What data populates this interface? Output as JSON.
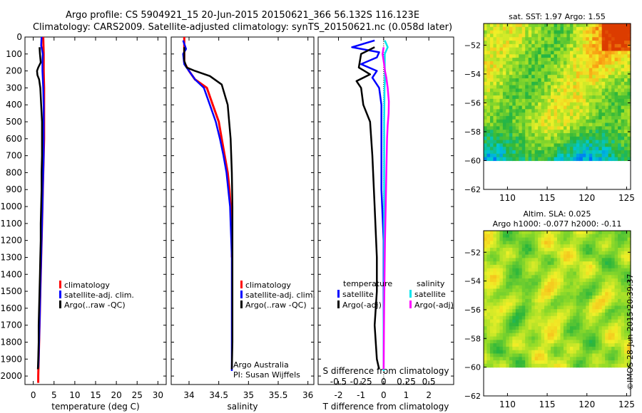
{
  "header": {
    "line1": "Argo profile: CS 5904921_15 20-Jun-2015 20150621_366 56.132S 116.123E",
    "line2": "Climatology: CARS2009. Satellite-adjusted climatology: synTS_20150621.nc (0.058d later)"
  },
  "stamp": "©IMOS 28-Jun-2015 20:39:37",
  "colors": {
    "climatology": "#ff0000",
    "satellite": "#0000ff",
    "argo": "#000000",
    "satellite_salinity": "#00e5ee",
    "argo_salinity": "#ff00ff"
  },
  "chart_data": [
    {
      "type": "line",
      "id": "temperature",
      "xlabel": "temperature (deg C)",
      "xlim": [
        -2,
        32
      ],
      "ylim": [
        2050,
        0
      ],
      "xticks": [
        0,
        5,
        10,
        15,
        20,
        25,
        30
      ],
      "yticks": [
        0,
        100,
        200,
        300,
        400,
        500,
        600,
        700,
        800,
        900,
        1000,
        1100,
        1200,
        1300,
        1400,
        1500,
        1600,
        1700,
        1800,
        1900,
        2000
      ],
      "legend": [
        "climatology",
        "satellite-adj. clim.",
        "Argo(..raw -QC)"
      ],
      "series": [
        {
          "name": "climatology",
          "points": [
            [
              2.4,
              0
            ],
            [
              2.5,
              100
            ],
            [
              2.5,
              200
            ],
            [
              2.6,
              300
            ],
            [
              2.6,
              400
            ],
            [
              2.6,
              500
            ],
            [
              2.6,
              600
            ],
            [
              2.5,
              700
            ],
            [
              2.4,
              800
            ],
            [
              2.3,
              900
            ],
            [
              2.2,
              1000
            ],
            [
              2.1,
              1100
            ],
            [
              2.0,
              1200
            ],
            [
              1.9,
              1300
            ],
            [
              1.8,
              1400
            ],
            [
              1.7,
              1500
            ],
            [
              1.6,
              1600
            ],
            [
              1.5,
              1700
            ],
            [
              1.4,
              1800
            ],
            [
              1.3,
              1900
            ],
            [
              1.2,
              2000
            ],
            [
              1.2,
              2040
            ]
          ]
        },
        {
          "name": "satellite-adj. clim.",
          "points": [
            [
              2.0,
              0
            ],
            [
              1.9,
              50
            ],
            [
              2.3,
              100
            ],
            [
              2.2,
              150
            ],
            [
              2.2,
              200
            ],
            [
              2.4,
              300
            ],
            [
              2.5,
              400
            ],
            [
              2.5,
              500
            ],
            [
              2.5,
              600
            ],
            [
              2.5,
              700
            ],
            [
              2.4,
              800
            ],
            [
              2.3,
              900
            ],
            [
              2.2,
              1000
            ],
            [
              2.1,
              1100
            ],
            [
              2.0,
              1200
            ],
            [
              1.9,
              1300
            ],
            [
              1.8,
              1400
            ],
            [
              1.7,
              1500
            ],
            [
              1.6,
              1600
            ],
            [
              1.5,
              1700
            ],
            [
              1.4,
              1800
            ],
            [
              1.3,
              1900
            ],
            [
              1.2,
              1950
            ]
          ]
        },
        {
          "name": "Argo(..raw -QC)",
          "points": [
            [
              1.5,
              60
            ],
            [
              1.6,
              100
            ],
            [
              1.8,
              150
            ],
            [
              1.2,
              180
            ],
            [
              0.9,
              200
            ],
            [
              1.0,
              225
            ],
            [
              1.4,
              250
            ],
            [
              1.7,
              300
            ],
            [
              1.9,
              400
            ],
            [
              2.1,
              500
            ],
            [
              2.1,
              600
            ],
            [
              2.1,
              700
            ],
            [
              2.0,
              800
            ],
            [
              2.0,
              900
            ],
            [
              1.9,
              1000
            ],
            [
              1.8,
              1100
            ],
            [
              1.8,
              1200
            ],
            [
              1.7,
              1300
            ],
            [
              1.6,
              1400
            ],
            [
              1.5,
              1500
            ],
            [
              1.4,
              1600
            ],
            [
              1.3,
              1700
            ],
            [
              1.3,
              1800
            ],
            [
              1.2,
              1900
            ],
            [
              1.1,
              1960
            ]
          ]
        }
      ]
    },
    {
      "type": "line",
      "id": "salinity",
      "xlabel": "salinity",
      "xlim": [
        33.7,
        36.1
      ],
      "ylim": [
        2050,
        0
      ],
      "xticks": [
        34,
        34.5,
        35,
        35.5,
        36
      ],
      "legend": [
        "climatology",
        "satellite-adj. clim.",
        "Argo(..raw -QC)"
      ],
      "annotation": [
        "Argo Australia",
        "PI: Susan Wijffels"
      ],
      "series": [
        {
          "name": "climatology",
          "points": [
            [
              33.92,
              0
            ],
            [
              33.92,
              150
            ],
            [
              34.0,
              200
            ],
            [
              34.1,
              250
            ],
            [
              34.3,
              300
            ],
            [
              34.4,
              400
            ],
            [
              34.5,
              500
            ],
            [
              34.55,
              600
            ],
            [
              34.6,
              700
            ],
            [
              34.65,
              800
            ],
            [
              34.68,
              900
            ],
            [
              34.7,
              1000
            ],
            [
              34.71,
              1100
            ],
            [
              34.72,
              1200
            ],
            [
              34.72,
              1300
            ]
          ]
        },
        {
          "name": "satellite-adj. clim.",
          "points": [
            [
              33.9,
              20
            ],
            [
              33.95,
              70
            ],
            [
              33.9,
              100
            ],
            [
              33.92,
              160
            ],
            [
              34.0,
              200
            ],
            [
              34.1,
              250
            ],
            [
              34.25,
              300
            ],
            [
              34.35,
              400
            ],
            [
              34.45,
              500
            ],
            [
              34.52,
              600
            ],
            [
              34.58,
              700
            ],
            [
              34.63,
              800
            ],
            [
              34.66,
              900
            ],
            [
              34.69,
              1000
            ],
            [
              34.7,
              1100
            ],
            [
              34.71,
              1200
            ],
            [
              34.72,
              1300
            ],
            [
              34.72,
              1500
            ],
            [
              34.72,
              1700
            ],
            [
              34.72,
              1900
            ],
            [
              34.72,
              1970
            ]
          ]
        },
        {
          "name": "Argo(..raw -QC)",
          "points": [
            [
              33.92,
              60
            ],
            [
              33.92,
              140
            ],
            [
              33.96,
              180
            ],
            [
              34.1,
              200
            ],
            [
              34.35,
              230
            ],
            [
              34.55,
              280
            ],
            [
              34.65,
              400
            ],
            [
              34.7,
              600
            ],
            [
              34.72,
              800
            ],
            [
              34.73,
              1000
            ],
            [
              34.73,
              1200
            ],
            [
              34.73,
              1400
            ],
            [
              34.73,
              1600
            ],
            [
              34.73,
              1800
            ],
            [
              34.72,
              1960
            ]
          ]
        }
      ]
    },
    {
      "type": "line",
      "id": "difference",
      "xlabel": "T difference from climatology",
      "xlabel2": "S difference from climatology",
      "xlim": [
        -2.9,
        3.1
      ],
      "xlim_salinity": [
        -0.725,
        0.775
      ],
      "ylim": [
        2050,
        0
      ],
      "xticks": [
        -2,
        -1,
        0,
        1,
        2
      ],
      "xticks_salinity": [
        -0.5,
        -0.25,
        0,
        0.25,
        0.5
      ],
      "legend_headers": [
        "temperature",
        "salinity"
      ],
      "legend": [
        "satellite",
        "Argo(-adj)",
        "satellite",
        "Argo(-adj)"
      ],
      "series": [
        {
          "name": "temperature satellite",
          "points": [
            [
              -0.4,
              20
            ],
            [
              -1.4,
              60
            ],
            [
              -0.2,
              90
            ],
            [
              -0.3,
              120
            ],
            [
              -1.0,
              160
            ],
            [
              -0.3,
              200
            ],
            [
              -0.5,
              240
            ],
            [
              -0.2,
              300
            ],
            [
              -0.1,
              400
            ],
            [
              -0.1,
              600
            ],
            [
              -0.1,
              900
            ],
            [
              0,
              1200
            ],
            [
              0,
              1500
            ],
            [
              0,
              1800
            ],
            [
              0,
              1950
            ]
          ]
        },
        {
          "name": "temperature Argo(-adj)",
          "points": [
            [
              -0.4,
              60
            ],
            [
              -1.0,
              100
            ],
            [
              -1.1,
              180
            ],
            [
              -0.6,
              220
            ],
            [
              -1.2,
              260
            ],
            [
              -1.0,
              300
            ],
            [
              -0.9,
              400
            ],
            [
              -0.6,
              500
            ],
            [
              -0.5,
              700
            ],
            [
              -0.4,
              1000
            ],
            [
              -0.3,
              1300
            ],
            [
              -0.3,
              1500
            ],
            [
              -0.4,
              1700
            ],
            [
              -0.3,
              1900
            ],
            [
              -0.2,
              1960
            ]
          ]
        },
        {
          "name": "salinity satellite",
          "points": [
            [
              0.05,
              20
            ],
            [
              0.18,
              60
            ],
            [
              0.05,
              100
            ],
            [
              0.05,
              160
            ],
            [
              0.06,
              250
            ],
            [
              0.04,
              300
            ],
            [
              0.02,
              500
            ],
            [
              0.02,
              800
            ],
            [
              0.02,
              1100
            ],
            [
              0.02,
              1400
            ],
            [
              0.0,
              1700
            ],
            [
              0.0,
              1970
            ]
          ]
        },
        {
          "name": "salinity Argo(-adj)",
          "points": [
            [
              0.0,
              60
            ],
            [
              -0.05,
              100
            ],
            [
              0.02,
              160
            ],
            [
              0.06,
              200
            ],
            [
              0.12,
              240
            ],
            [
              0.18,
              300
            ],
            [
              0.23,
              380
            ],
            [
              0.22,
              450
            ],
            [
              0.18,
              520
            ],
            [
              0.15,
              600
            ],
            [
              0.12,
              800
            ],
            [
              0.09,
              1000
            ],
            [
              0.06,
              1200
            ],
            [
              0.04,
              1400
            ],
            [
              0.02,
              1600
            ],
            [
              0.01,
              1800
            ],
            [
              0.0,
              1960
            ]
          ]
        }
      ]
    },
    {
      "type": "heatmap",
      "id": "sst-map",
      "title": "sat. SST: 1.97 Argo: 1.55",
      "xlim": [
        107,
        125.5
      ],
      "ylim": [
        -62,
        -50.5
      ],
      "xticks": [
        110,
        115,
        120,
        125
      ],
      "yticks": [
        -52,
        -54,
        -56,
        -58,
        -60,
        -62
      ],
      "xticklabels": [
        "110",
        "115",
        "120",
        "125"
      ],
      "yticklabels": [
        "−52",
        "−54",
        "−56",
        "−58",
        "−60",
        "−62"
      ],
      "data_extent_lat": [
        -60,
        -50.5
      ]
    },
    {
      "type": "heatmap",
      "id": "sla-map",
      "title": [
        "Altim. SLA: 0.025",
        "Argo h1000: -0.077 h2000: -0.11"
      ],
      "xlim": [
        107,
        125.5
      ],
      "ylim": [
        -62,
        -50.5
      ],
      "xticks": [
        110,
        115,
        120,
        125
      ],
      "yticks": [
        -52,
        -54,
        -56,
        -58,
        -60,
        -62
      ],
      "xticklabels": [
        "110",
        "115",
        "120",
        "125"
      ],
      "yticklabels": [
        "−52",
        "−54",
        "−56",
        "−58",
        "−60",
        "−62"
      ],
      "data_extent_lat": [
        -60,
        -50.5
      ]
    }
  ]
}
